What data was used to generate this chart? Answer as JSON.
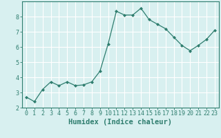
{
  "x": [
    0,
    1,
    2,
    3,
    4,
    5,
    6,
    7,
    8,
    9,
    10,
    11,
    12,
    13,
    14,
    15,
    16,
    17,
    18,
    19,
    20,
    21,
    22,
    23
  ],
  "y": [
    2.7,
    2.4,
    3.2,
    3.7,
    3.45,
    3.7,
    3.45,
    3.5,
    3.7,
    4.4,
    6.2,
    8.35,
    8.1,
    8.1,
    8.55,
    7.8,
    7.5,
    7.2,
    6.65,
    6.1,
    5.75,
    6.1,
    6.5,
    7.1
  ],
  "line_color": "#2e7d6e",
  "marker": "D",
  "marker_size": 2.0,
  "background_color": "#d8f0f0",
  "grid_color": "#ffffff",
  "xlabel": "Humidex (Indice chaleur)",
  "ylabel": "",
  "xlim": [
    -0.5,
    23.5
  ],
  "ylim": [
    2.0,
    9.0
  ],
  "yticks": [
    2,
    3,
    4,
    5,
    6,
    7,
    8
  ],
  "xticks": [
    0,
    1,
    2,
    3,
    4,
    5,
    6,
    7,
    8,
    9,
    10,
    11,
    12,
    13,
    14,
    15,
    16,
    17,
    18,
    19,
    20,
    21,
    22,
    23
  ],
  "tick_color": "#2e7d6e",
  "label_fontsize": 6.0,
  "axis_label_fontsize": 7.5
}
